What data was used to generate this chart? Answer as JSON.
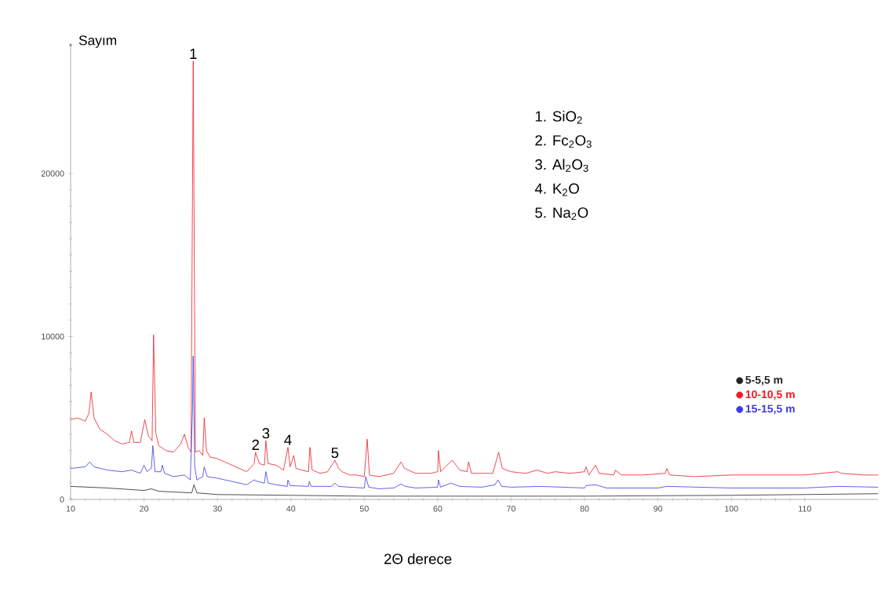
{
  "chart_data": {
    "type": "line",
    "xlabel": "2Θ derece",
    "ylabel": "Sayım",
    "xlim": [
      10,
      120
    ],
    "ylim": [
      0,
      28000
    ],
    "xticks": [
      10,
      20,
      30,
      40,
      50,
      60,
      70,
      80,
      90,
      100,
      110
    ],
    "yticks": [
      0,
      10000,
      20000
    ],
    "grid": false,
    "legend": "right",
    "x": [
      10,
      11,
      12,
      12.5,
      12.8,
      13.2,
      14,
      15,
      16,
      17,
      18,
      18.3,
      18.6,
      19.5,
      20.1,
      20.6,
      21.1,
      21.3,
      21.6,
      22,
      23,
      24,
      25,
      25.5,
      26,
      26.4,
      26.7,
      27.0,
      27.5,
      28,
      28.2,
      28.5,
      29,
      30,
      31,
      32,
      33,
      34,
      35,
      35.2,
      35.7,
      36.4,
      36.6,
      36.9,
      38,
      39,
      39.6,
      39.9,
      40.4,
      40.7,
      41.5,
      42.4,
      42.6,
      42.9,
      44,
      45,
      46,
      46.5,
      47,
      48,
      49,
      50,
      50.4,
      50.7,
      52,
      54,
      55,
      55.5,
      57,
      59,
      60,
      60.1,
      60.4,
      61.5,
      62,
      63,
      64,
      64.2,
      64.6,
      66,
      67.5,
      68,
      68.3,
      68.8,
      70,
      72,
      73.5,
      75,
      76,
      78,
      80,
      80.2,
      80.6,
      81.5,
      82,
      84,
      84.2,
      85,
      88,
      91,
      91.2,
      91.6,
      95,
      100,
      105,
      110,
      114.5,
      115,
      118,
      120
    ],
    "series": [
      {
        "name": "5-5,5 m",
        "color": "#222222",
        "x": [
          10,
          15,
          20,
          21,
          22,
          26.5,
          26.8,
          27.2,
          30,
          40,
          50,
          60,
          80,
          100,
          110,
          120
        ],
        "values": [
          800,
          700,
          550,
          650,
          500,
          400,
          900,
          400,
          300,
          250,
          200,
          200,
          200,
          250,
          300,
          350
        ]
      },
      {
        "name": "10-10,5 m",
        "color": "#ee1c24",
        "values": [
          4900,
          5000,
          4800,
          5300,
          6600,
          5000,
          4300,
          4000,
          3600,
          3400,
          3500,
          4200,
          3500,
          3500,
          4900,
          3900,
          3600,
          10100,
          4100,
          3300,
          3000,
          2900,
          3400,
          4000,
          3200,
          2900,
          26900,
          2900,
          3000,
          2700,
          5000,
          3000,
          2600,
          2500,
          2300,
          2100,
          1900,
          1700,
          2200,
          2900,
          2200,
          2100,
          3600,
          2200,
          2100,
          1800,
          3200,
          2000,
          2700,
          1900,
          1800,
          1700,
          3200,
          1800,
          1600,
          1700,
          2400,
          1900,
          1700,
          1500,
          1500,
          1400,
          3700,
          1500,
          1400,
          1600,
          2300,
          1900,
          1600,
          1600,
          1700,
          3000,
          1700,
          2200,
          2400,
          1800,
          1700,
          2300,
          1600,
          1600,
          1600,
          2400,
          2900,
          1900,
          1700,
          1600,
          1800,
          1600,
          1700,
          1600,
          1700,
          2000,
          1500,
          2100,
          1600,
          1500,
          1800,
          1500,
          1500,
          1600,
          1900,
          1500,
          1400,
          1500,
          1500,
          1500,
          1700,
          1600,
          1500,
          1500
        ]
      },
      {
        "name": "15-15,5 m",
        "color": "#3a3ae8",
        "x": [
          10,
          12,
          12.6,
          13.2,
          15,
          17,
          18.3,
          19.5,
          20,
          20.4,
          21,
          21.2,
          21.5,
          22.3,
          22.5,
          22.8,
          24,
          25.5,
          26.3,
          26.6,
          26.7,
          26.9,
          27.2,
          28,
          28.2,
          28.6,
          30,
          32,
          34,
          35,
          35.5,
          36.4,
          36.6,
          36.9,
          38,
          39.5,
          39.6,
          39.9,
          42.4,
          42.5,
          42.8,
          45.5,
          46,
          46.5,
          48,
          50,
          50.2,
          50.6,
          52,
          54,
          55,
          55.6,
          57,
          60,
          60.1,
          60.4,
          61.8,
          63,
          66,
          67.8,
          68.2,
          68.7,
          70,
          74,
          80,
          80.2,
          81.5,
          83,
          90,
          91.2,
          100,
          110,
          114.5,
          120
        ],
        "values": [
          1900,
          2000,
          2300,
          2000,
          1800,
          1700,
          1800,
          1600,
          2100,
          1700,
          1900,
          3300,
          1700,
          1700,
          2100,
          1600,
          1400,
          1500,
          1200,
          5400,
          8800,
          2000,
          1200,
          1400,
          2000,
          1400,
          1300,
          1100,
          900,
          1200,
          1100,
          1000,
          1700,
          1000,
          900,
          800,
          1200,
          850,
          800,
          1100,
          800,
          800,
          1000,
          800,
          750,
          700,
          1400,
          750,
          650,
          700,
          950,
          800,
          700,
          750,
          1200,
          750,
          1000,
          800,
          750,
          900,
          1200,
          800,
          750,
          800,
          700,
          850,
          900,
          700,
          700,
          800,
          700,
          700,
          800,
          750
        ]
      }
    ],
    "annotations": [
      {
        "text": "1",
        "x": 26.7,
        "y": 26900
      },
      {
        "text": "2",
        "x": 35.2,
        "y": 2900
      },
      {
        "text": "3",
        "x": 36.6,
        "y": 3600
      },
      {
        "text": "4",
        "x": 39.6,
        "y": 3200
      },
      {
        "text": "5",
        "x": 46,
        "y": 2400
      },
      "1. SiO$_{2}$",
      "2. Fc$_{2}$O$_{3}$",
      "3. Al$_{2}$O$_{3}$",
      "4. K$_{2}$O",
      "5. Na$_{2}$O"
    ]
  }
}
